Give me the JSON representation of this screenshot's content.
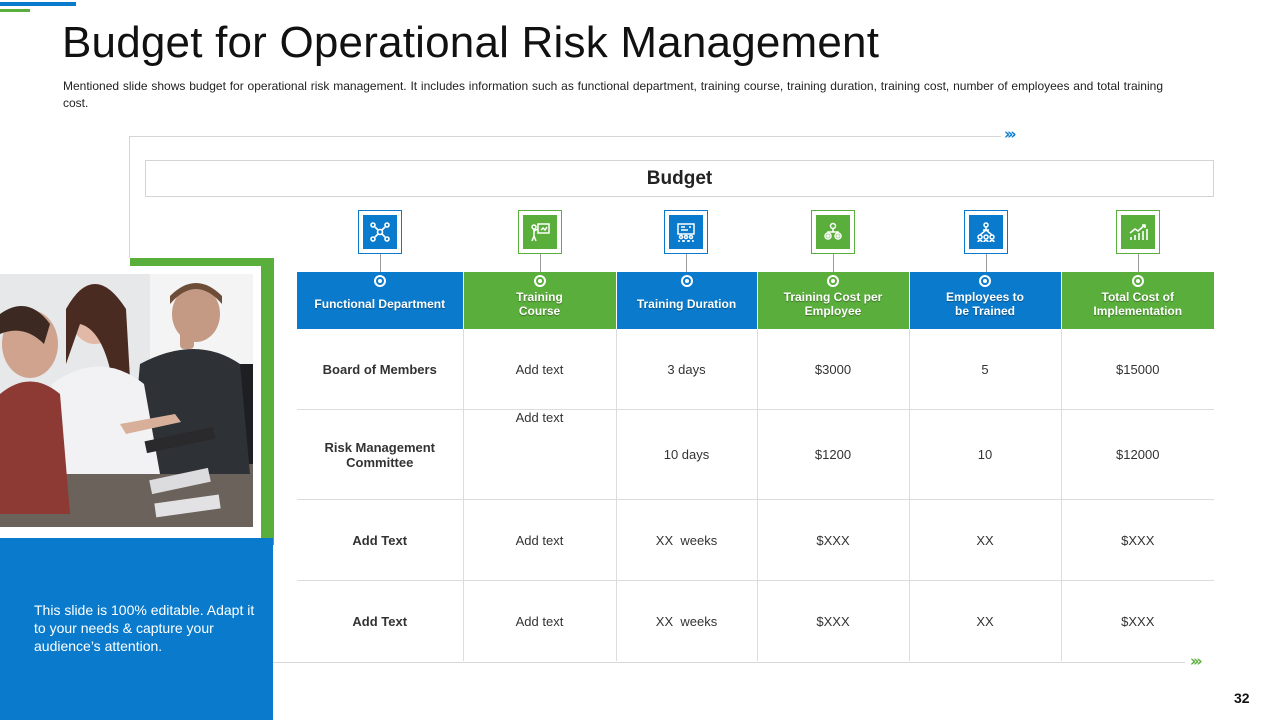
{
  "slide": {
    "title": "Budget for Operational Risk Management",
    "subtitle": "Mentioned slide shows budget for operational risk management. It includes information such as functional department, training course, training duration, training cost, number of employees and total training cost.",
    "section_label": "Budget",
    "side_note": "This slide is 100% editable. Adapt it to your needs & capture your audience’s attention.",
    "page_number": "32"
  },
  "colors": {
    "blue": "#0a7bcc",
    "green": "#5aae3b"
  },
  "icons": [
    "network-icon",
    "presentation-icon",
    "schedule-board-icon",
    "cost-gears-icon",
    "org-chart-icon",
    "growth-chart-icon"
  ],
  "table": {
    "headers": [
      {
        "label": "Functional Department",
        "color": "blue"
      },
      {
        "label": "Training Course",
        "color": "green"
      },
      {
        "label": "Training Duration",
        "color": "blue"
      },
      {
        "label": "Training Cost per Employee",
        "color": "green"
      },
      {
        "label": "Employees to be Trained",
        "color": "blue"
      },
      {
        "label": "Total Cost of Implementation",
        "color": "green"
      }
    ],
    "rows": [
      [
        "Board of Members",
        "Add text",
        "3 days",
        "$3000",
        "5",
        "$15000"
      ],
      [
        "Risk Management Committee",
        "Add text",
        "10 days",
        "$1200",
        "10",
        "$12000"
      ],
      [
        "Add Text",
        "Add text",
        "XX  weeks",
        "$XXX",
        "XX",
        "$XXX"
      ],
      [
        "Add Text",
        "Add text",
        "XX  weeks",
        "$XXX",
        "XX",
        "$XXX"
      ]
    ]
  }
}
